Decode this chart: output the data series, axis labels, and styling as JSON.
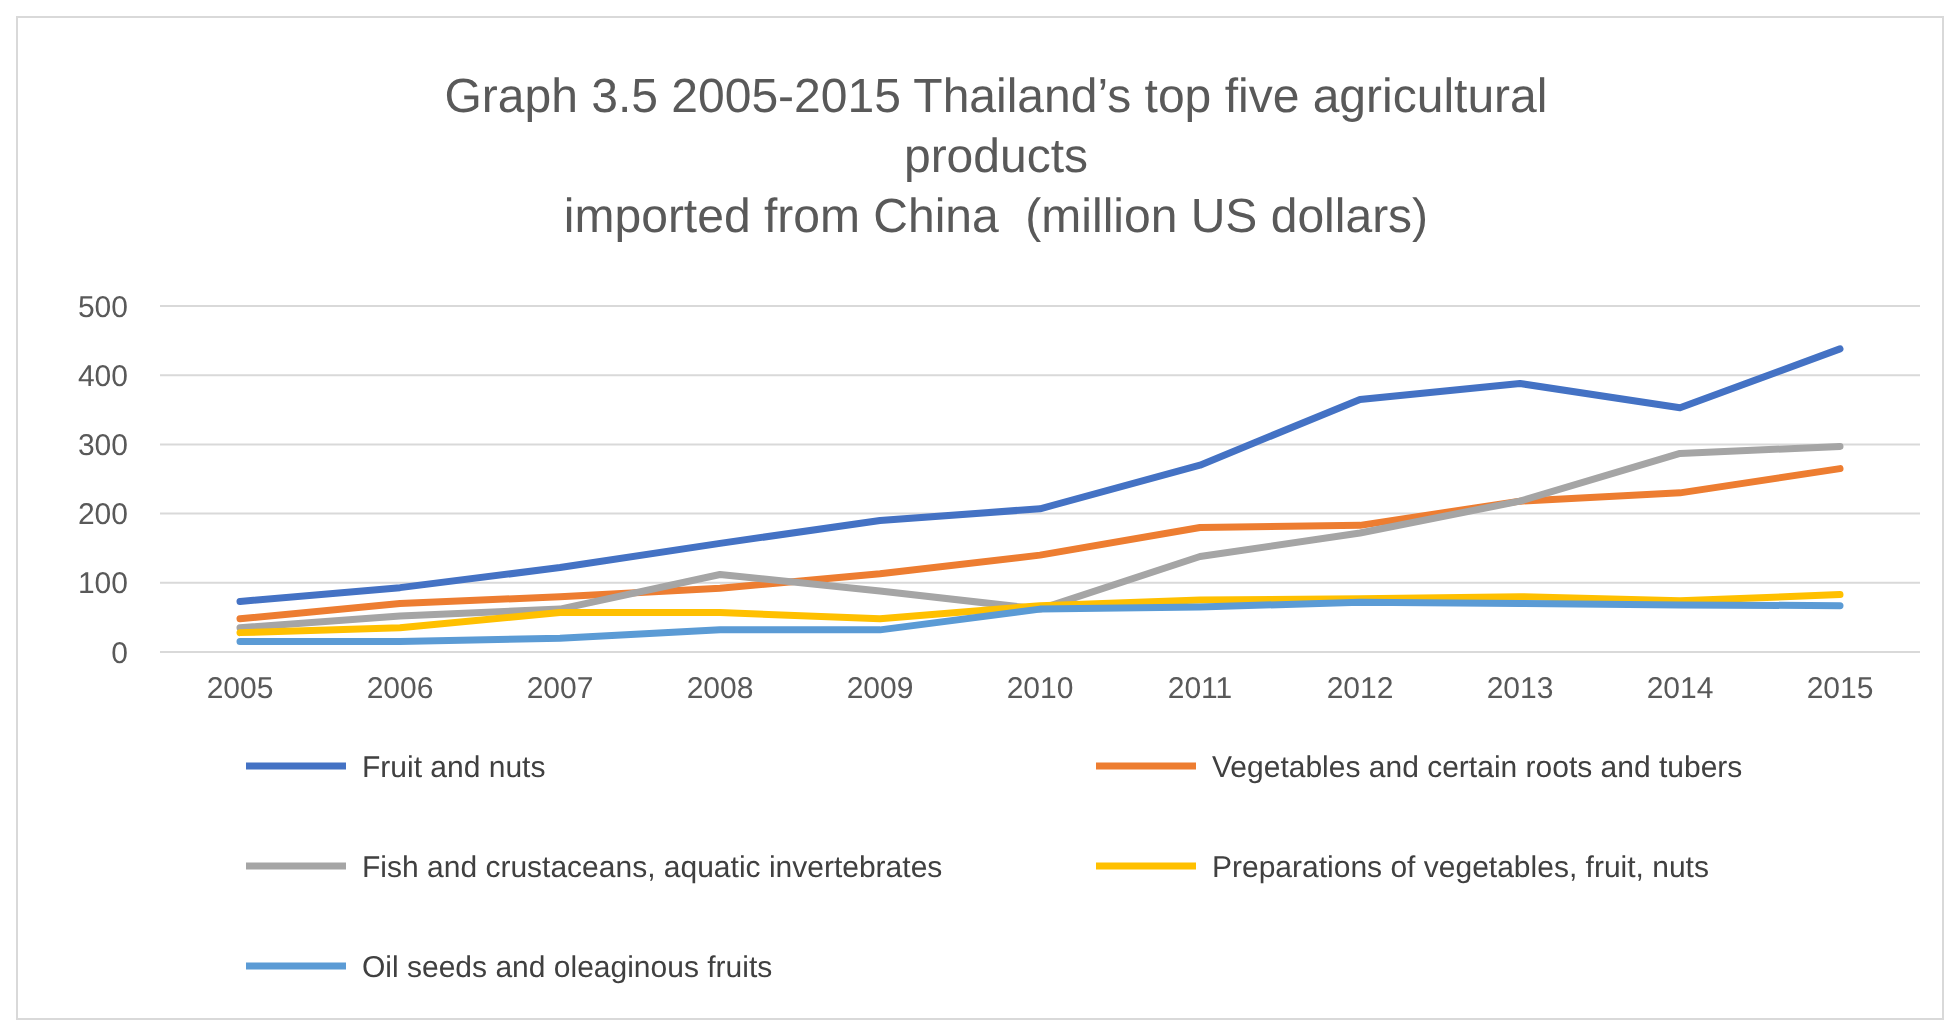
{
  "chart_data": {
    "type": "line",
    "title": "Graph 3.5 2005-2015 Thailand’s top five agricultural products\nimported from China  (million US dollars)",
    "categories": [
      "2005",
      "2006",
      "2007",
      "2008",
      "2009",
      "2010",
      "2011",
      "2012",
      "2013",
      "2014",
      "2015"
    ],
    "series": [
      {
        "name": "Fruit and nuts",
        "color": "#4472c4",
        "values": [
          73,
          93,
          122,
          157,
          190,
          207,
          270,
          365,
          388,
          353,
          438
        ]
      },
      {
        "name": "Vegetables and certain roots and tubers",
        "color": "#ed7d31",
        "values": [
          48,
          70,
          80,
          92,
          113,
          140,
          180,
          183,
          218,
          230,
          265
        ]
      },
      {
        "name": "Fish and crustaceans, aquatic invertebrates",
        "color": "#a5a5a5",
        "values": [
          35,
          52,
          62,
          112,
          88,
          62,
          138,
          172,
          218,
          287,
          297
        ]
      },
      {
        "name": "Preparations of vegetables, fruit, nuts",
        "color": "#ffc000",
        "values": [
          28,
          35,
          57,
          57,
          48,
          67,
          75,
          77,
          80,
          74,
          83
        ]
      },
      {
        "name": "Oil seeds and oleaginous fruits",
        "color": "#5b9bd5",
        "values": [
          15,
          15,
          20,
          32,
          32,
          62,
          65,
          72,
          70,
          68,
          67
        ]
      }
    ],
    "ylim": [
      0,
      500
    ],
    "yticks": [
      0,
      100,
      200,
      300,
      400,
      500
    ],
    "grid": "y",
    "legend": "bottom",
    "marker": "none",
    "line_style": "solid"
  }
}
